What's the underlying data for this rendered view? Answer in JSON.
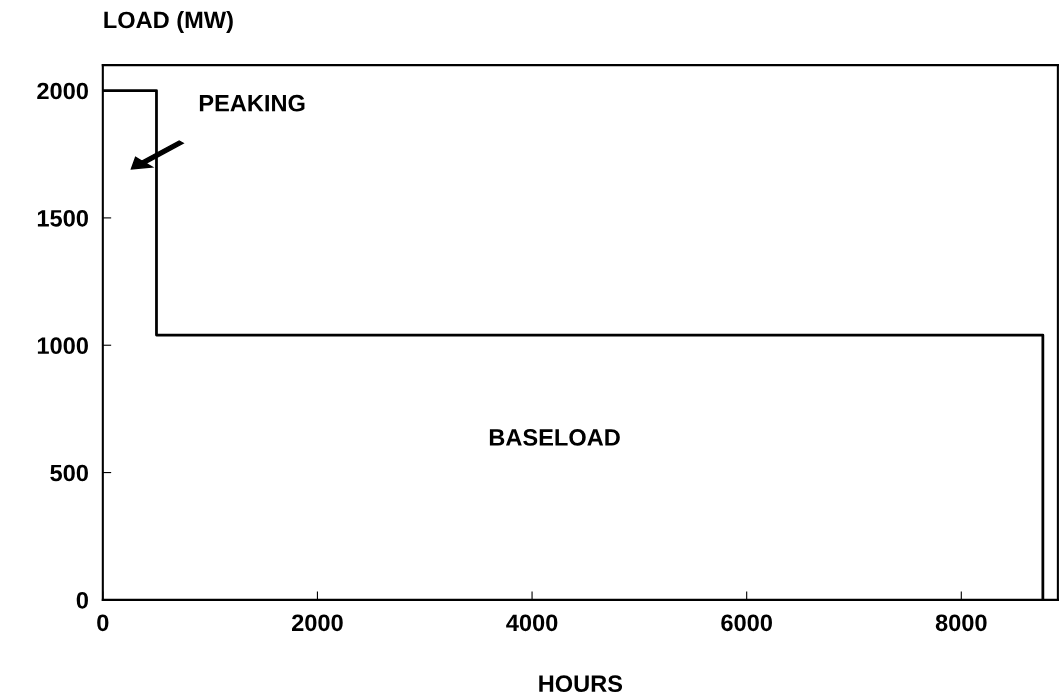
{
  "chart_data": {
    "type": "step",
    "xlabel": "HOURS",
    "ylabel": "LOAD (MW)",
    "x": [
      0,
      500,
      8760
    ],
    "values": [
      2000,
      1040,
      0
    ],
    "color": "#000000",
    "xlim": [
      0,
      8900
    ],
    "ylim": [
      0,
      2100
    ],
    "xticks": [
      0,
      2000,
      4000,
      6000,
      8000
    ],
    "yticks": [
      0,
      500,
      1000,
      1500,
      2000
    ],
    "grid": false,
    "legend": false,
    "marker": "none",
    "line_style": "solid",
    "annotations": [
      "PEAKING",
      "BASELOAD"
    ]
  }
}
